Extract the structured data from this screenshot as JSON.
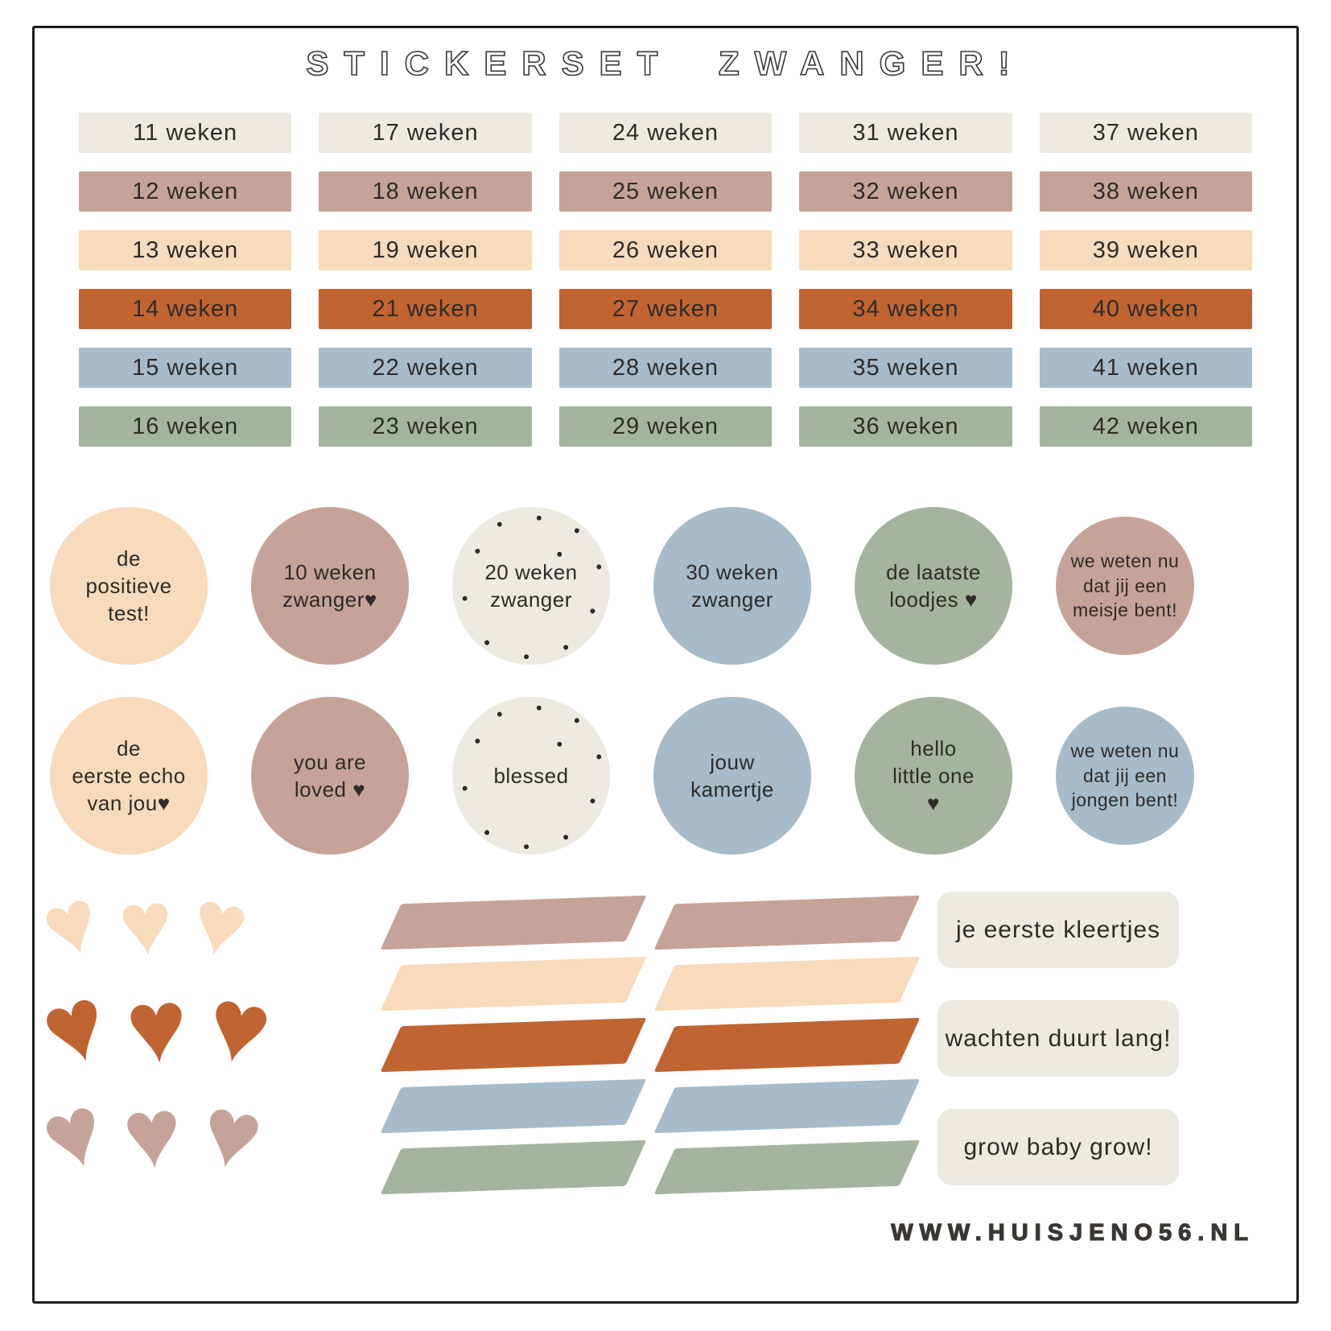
{
  "page": {
    "title": "STICKERSET ZWANGER!",
    "website": "WWW.HUISJENO56.NL"
  },
  "palette": {
    "cream": "#eceae1",
    "mauve": "#c6a399",
    "peach": "#f8dbbc",
    "terracotta": "#c06431",
    "blue": "#a7bbc8",
    "green": "#a5b49f",
    "text": "#2e2b28",
    "border": "#1c1c1c"
  },
  "week_grid": {
    "row_colors": [
      "#eceae1",
      "#c6a399",
      "#f8dbbc",
      "#c06431",
      "#a7bbc8",
      "#a5b49f"
    ],
    "columns": [
      [
        "11 weken",
        "12 weken",
        "13 weken",
        "14 weken",
        "15 weken",
        "16 weken"
      ],
      [
        "17 weken",
        "18 weken",
        "19 weken",
        "21 weken",
        "22 weken",
        "23 weken"
      ],
      [
        "24 weken",
        "25 weken",
        "26 weken",
        "27 weken",
        "28 weken",
        "29 weken"
      ],
      [
        "31 weken",
        "32 weken",
        "33 weken",
        "34 weken",
        "35 weken",
        "36 weken"
      ],
      [
        "37 weken",
        "38 weken",
        "39 weken",
        "40 weken",
        "41 weken",
        "42 weken"
      ]
    ]
  },
  "circles": [
    [
      {
        "text": "de\npositieve\ntest!",
        "color": "#f8dbbc"
      },
      {
        "text": "10 weken\nzwanger♥",
        "color": "#c6a399"
      },
      {
        "text": "20 weken\nzwanger",
        "color": "#eceae1"
      },
      {
        "text": "30 weken\nzwanger",
        "color": "#a7bbc8"
      },
      {
        "text": "de laatste\nloodjes ♥",
        "color": "#a5b49f"
      },
      {
        "text": "we weten nu\ndat jij een\nmeisje bent!",
        "color": "#c6a399"
      }
    ],
    [
      {
        "text": "de\neerste echo\nvan jou♥",
        "color": "#f8dbbc"
      },
      {
        "text": "you are\nloved ♥",
        "color": "#c6a399"
      },
      {
        "text": "blessed",
        "color": "#eceae1"
      },
      {
        "text": "jouw\nkamertje",
        "color": "#a7bbc8"
      },
      {
        "text": "hello\nlittle one\n♥",
        "color": "#a5b49f"
      },
      {
        "text": "we weten nu\ndat jij een\njongen bent!",
        "color": "#a7bbc8"
      }
    ]
  ],
  "hearts": {
    "glyph": "♥",
    "rows": [
      {
        "color": "#f8dbbc"
      },
      {
        "color": "#c06431"
      },
      {
        "color": "#c6a399"
      }
    ]
  },
  "stripes": {
    "colors": [
      "#c6a399",
      "#f8dbbc",
      "#c06431",
      "#a7bbc8",
      "#a5b49f"
    ]
  },
  "labels": [
    "je eerste kleertjes",
    "wachten duurt lang!",
    "grow baby grow!"
  ]
}
